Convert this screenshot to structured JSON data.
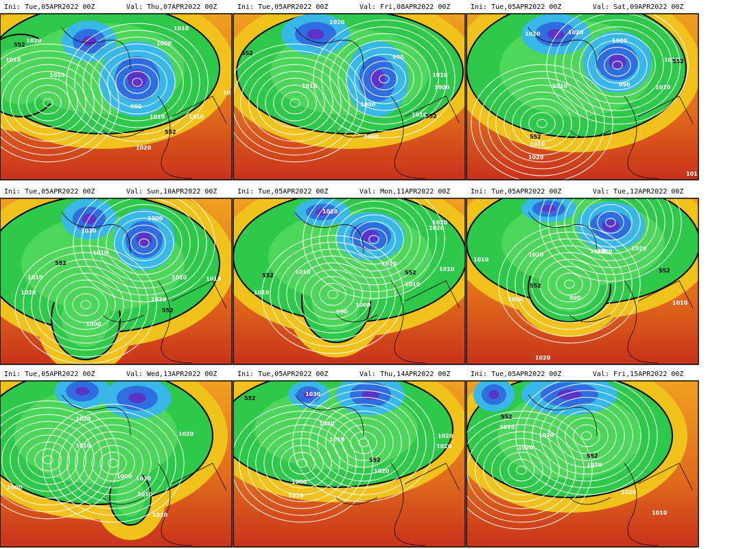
{
  "panels": [
    {
      "ini": "Ini: Tue,05APR2022 00Z",
      "val": "Val: Thu,07APR2022 00Z",
      "labels": [
        "552",
        "1010",
        "1020",
        "1010",
        "1010",
        "1000",
        "990",
        "1010",
        "552",
        "1020",
        "1010",
        "1010"
      ]
    },
    {
      "ini": "Ini: Tue,05APR2022 00Z",
      "val": "Val: Fri,08APR2022 00Z",
      "labels": [
        "552",
        "1020",
        "990",
        "1010",
        "1010",
        "1000",
        "1000",
        "1010",
        "552",
        "1020"
      ]
    },
    {
      "ini": "Ini: Tue,05APR2022 00Z",
      "val": "Val: Sat,09APR2022 00Z",
      "labels": [
        "1020",
        "1020",
        "1000",
        "1010",
        "552",
        "1010",
        "990",
        "1010",
        "552",
        "1010",
        "1020",
        "1010"
      ]
    },
    {
      "ini": "Ini: Tue,05APR2022 00Z",
      "val": "Val: Sun,10APR2022 00Z",
      "labels": [
        "1020",
        "1000",
        "1010",
        "552",
        "1010",
        "1020",
        "1010",
        "1000",
        "1020",
        "552",
        "1010"
      ]
    },
    {
      "ini": "Ini: Tue,05APR2022 00Z",
      "val": "Val: Mon,11APR2022 00Z",
      "labels": [
        "1020",
        "1020",
        "552",
        "1010",
        "1010",
        "1010",
        "990",
        "1000",
        "552",
        "1010",
        "1010",
        "1020"
      ]
    },
    {
      "ini": "Ini: Tue,05APR2022 00Z",
      "val": "Val: Tue,12APR2022 00Z",
      "labels": [
        "1010",
        "1020",
        "1010",
        "552",
        "1000",
        "990",
        "1000",
        "1020",
        "552",
        "1010",
        "1020"
      ]
    },
    {
      "ini": "Ini: Tue,05APR2022 00Z",
      "val": "Val: Wed,13APR2022 00Z",
      "labels": [
        "1020",
        "1010",
        "1020",
        "1000",
        "1000",
        "1010",
        "1010",
        "1010"
      ]
    },
    {
      "ini": "Ini: Tue,05APR2022 00Z",
      "val": "Val: Thu,14APR2022 00Z",
      "labels": [
        "552",
        "1030",
        "1020",
        "1010",
        "1000",
        "1010",
        "552",
        "1020",
        "1020",
        "1020"
      ]
    },
    {
      "ini": "Ini: Tue,05APR2022 00Z",
      "val": "Val: Fri,15APR2022 00Z",
      "labels": [
        "552",
        "1010",
        "1020",
        "1020",
        "552",
        "1020",
        "1020",
        "1010"
      ]
    }
  ]
}
